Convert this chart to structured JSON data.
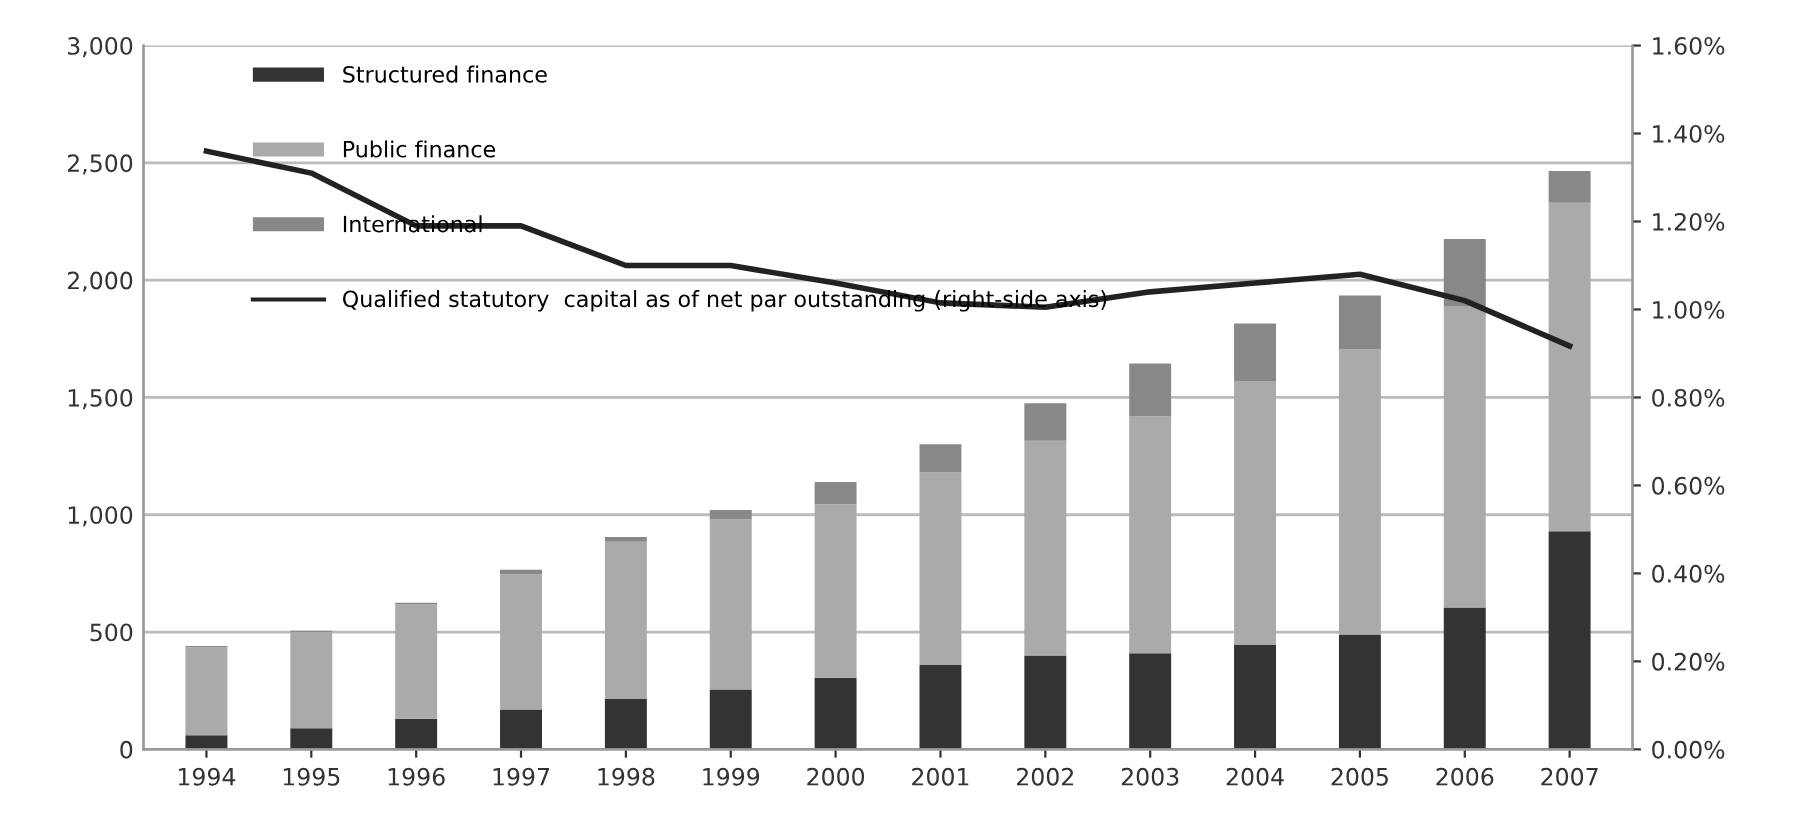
{
  "chart_data": {
    "type": "bar",
    "stacked": true,
    "categories": [
      "1994",
      "1995",
      "1996",
      "1997",
      "1998",
      "1999",
      "2000",
      "2001",
      "2002",
      "2003",
      "2004",
      "2005",
      "2006",
      "2007"
    ],
    "series": [
      {
        "name": "Structured finance",
        "color": "#333333",
        "values": [
          60,
          90,
          130,
          170,
          215,
          255,
          305,
          360,
          400,
          410,
          445,
          490,
          605,
          930
        ]
      },
      {
        "name": "Public finance",
        "color": "#aaaaaa",
        "values": [
          375,
          410,
          490,
          575,
          670,
          725,
          740,
          820,
          915,
          1010,
          1125,
          1215,
          1285,
          1400
        ]
      },
      {
        "name": "International",
        "color": "#888888",
        "values": [
          5,
          5,
          5,
          20,
          20,
          40,
          95,
          120,
          160,
          225,
          245,
          230,
          285,
          135
        ]
      },
      {
        "name": "Qualified statutory  capital as of net par outstanding (right-side axis)",
        "type": "line",
        "axis": "y2",
        "color": "#222222",
        "values": [
          1.36,
          1.31,
          1.19,
          1.19,
          1.1,
          1.1,
          1.06,
          1.015,
          1.005,
          1.04,
          1.06,
          1.08,
          1.02,
          0.917
        ]
      }
    ],
    "ylim": [
      0,
      3000
    ],
    "yticks": [
      {
        "value": 0,
        "label": "0"
      },
      {
        "value": 500,
        "label": "500"
      },
      {
        "value": 1000,
        "label": "1,000"
      },
      {
        "value": 1500,
        "label": "1,500"
      },
      {
        "value": 2000,
        "label": "2,000"
      },
      {
        "value": 2500,
        "label": "2,500"
      },
      {
        "value": 3000,
        "label": "3,000"
      }
    ],
    "y2lim": [
      0,
      1.6
    ],
    "y2ticks": [
      {
        "value": 0,
        "label": "0.00%"
      },
      {
        "value": 0.2,
        "label": "0.20%"
      },
      {
        "value": 0.4,
        "label": "0.40%"
      },
      {
        "value": 0.6,
        "label": "0.60%"
      },
      {
        "value": 0.8,
        "label": "0.80%"
      },
      {
        "value": 1.0,
        "label": "1.00%"
      },
      {
        "value": 1.2,
        "label": "1.20%"
      },
      {
        "value": 1.4,
        "label": "1.40%"
      },
      {
        "value": 1.6,
        "label": "1.60%"
      }
    ],
    "grid": "y",
    "legend": "top left",
    "marker": "none",
    "line_style": "solid"
  }
}
